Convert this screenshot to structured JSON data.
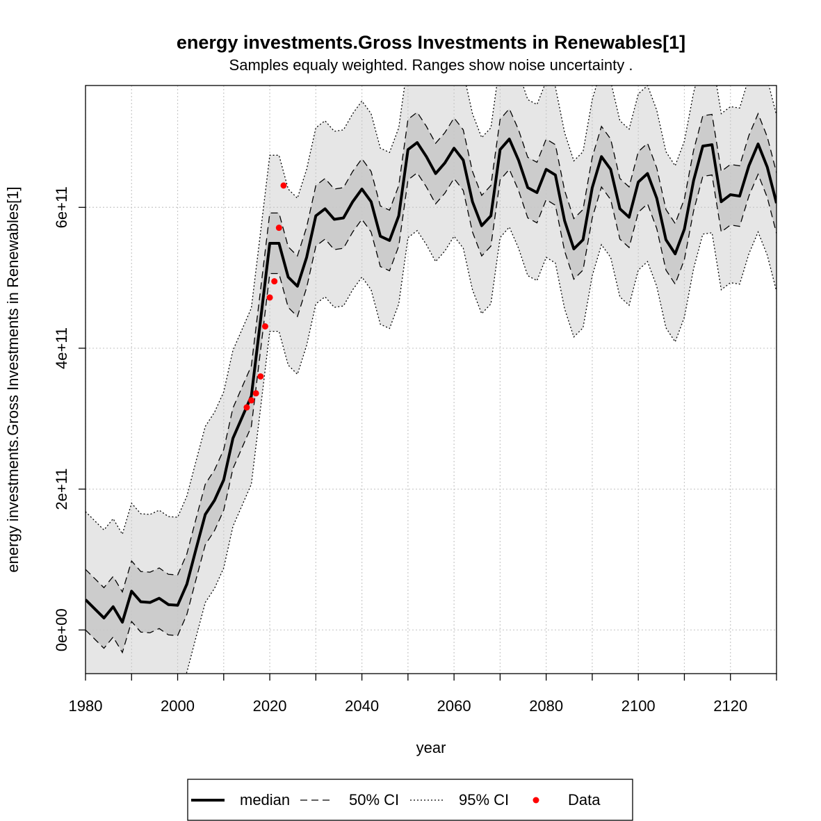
{
  "chart_data": {
    "type": "line",
    "title": "energy investments.Gross Investments in Renewables[1]",
    "subtitle": "Samples equaly weighted. Ranges show  noise uncertainty .",
    "x_label": "year",
    "y_label": "energy investments.Gross Investments in Renewables[1]",
    "xlim": [
      1980,
      2130
    ],
    "ylim": [
      -62000000000.0,
      773000000000.0
    ],
    "xticks": [
      1980,
      2000,
      2020,
      2040,
      2060,
      2080,
      2100,
      2120
    ],
    "x_minor_ticks": [
      1990,
      2010,
      2030,
      2050,
      2070,
      2090,
      2110,
      2130
    ],
    "yticks": [
      {
        "value": 0,
        "label": "0e+00"
      },
      {
        "value": 200000000000.0,
        "label": "2e+11"
      },
      {
        "value": 400000000000.0,
        "label": "4e+11"
      },
      {
        "value": 600000000000.0,
        "label": "6e+11"
      }
    ],
    "grid": true,
    "legend": "bottom",
    "x": [
      1980,
      1982,
      1984,
      1986,
      1988,
      1990,
      1992,
      1994,
      1996,
      1998,
      2000,
      2002,
      2004,
      2006,
      2008,
      2010,
      2012,
      2014,
      2016,
      2018,
      2020,
      2022,
      2024,
      2026,
      2028,
      2030,
      2032,
      2034,
      2036,
      2038,
      2040,
      2042,
      2044,
      2046,
      2048,
      2050,
      2052,
      2054,
      2056,
      2058,
      2060,
      2062,
      2064,
      2066,
      2068,
      2070,
      2072,
      2074,
      2076,
      2078,
      2080,
      2082,
      2084,
      2086,
      2088,
      2090,
      2092,
      2094,
      2096,
      2098,
      2100,
      2102,
      2104,
      2106,
      2108,
      2110,
      2112,
      2114,
      2116,
      2118,
      2120,
      2122,
      2124,
      2126,
      2128,
      2130
    ],
    "series": [
      {
        "name": "median",
        "color": "#000000",
        "values": [
          43000000000.0,
          30000000000.0,
          17000000000.0,
          33000000000.0,
          11000000000.0,
          55000000000.0,
          40000000000.0,
          39000000000.0,
          45000000000.0,
          36000000000.0,
          35000000000.0,
          65000000000.0,
          115000000000.0,
          164000000000.0,
          184000000000.0,
          213000000000.0,
          272000000000.0,
          302000000000.0,
          332000000000.0,
          440000000000.0,
          549000000000.0,
          549000000000.0,
          501000000000.0,
          488000000000.0,
          529000000000.0,
          588000000000.0,
          598000000000.0,
          583000000000.0,
          585000000000.0,
          608000000000.0,
          626000000000.0,
          608000000000.0,
          559000000000.0,
          553000000000.0,
          588000000000.0,
          682000000000.0,
          692000000000.0,
          672000000000.0,
          648000000000.0,
          663000000000.0,
          684000000000.0,
          667000000000.0,
          608000000000.0,
          574000000000.0,
          588000000000.0,
          682000000000.0,
          697000000000.0,
          667000000000.0,
          628000000000.0,
          621000000000.0,
          654000000000.0,
          646000000000.0,
          581000000000.0,
          541000000000.0,
          554000000000.0,
          628000000000.0,
          672000000000.0,
          654000000000.0,
          598000000000.0,
          586000000000.0,
          636000000000.0,
          648000000000.0,
          613000000000.0,
          554000000000.0,
          534000000000.0,
          569000000000.0,
          638000000000.0,
          687000000000.0,
          689000000000.0,
          608000000000.0,
          618000000000.0,
          616000000000.0,
          659000000000.0,
          690000000000.0,
          657000000000.0,
          606000000000.0
        ]
      },
      {
        "name": "50% CI",
        "color": "#cccccc",
        "upper": [
          86000000000.0,
          73000000000.0,
          60000000000.0,
          76000000000.0,
          54000000000.0,
          98000000000.0,
          83000000000.0,
          82000000000.0,
          88000000000.0,
          79000000000.0,
          78000000000.0,
          108000000000.0,
          158000000000.0,
          207000000000.0,
          227000000000.0,
          256000000000.0,
          315000000000.0,
          345000000000.0,
          375000000000.0,
          483000000000.0,
          592000000000.0,
          592000000000.0,
          544000000000.0,
          531000000000.0,
          572000000000.0,
          631000000000.0,
          641000000000.0,
          626000000000.0,
          628000000000.0,
          651000000000.0,
          669000000000.0,
          651000000000.0,
          602000000000.0,
          596000000000.0,
          631000000000.0,
          725000000000.0,
          735000000000.0,
          715000000000.0,
          691000000000.0,
          706000000000.0,
          727000000000.0,
          710000000000.0,
          651000000000.0,
          617000000000.0,
          631000000000.0,
          725000000000.0,
          740000000000.0,
          710000000000.0,
          671000000000.0,
          664000000000.0,
          697000000000.0,
          689000000000.0,
          624000000000.0,
          584000000000.0,
          597000000000.0,
          671000000000.0,
          715000000000.0,
          697000000000.0,
          641000000000.0,
          629000000000.0,
          679000000000.0,
          691000000000.0,
          656000000000.0,
          597000000000.0,
          577000000000.0,
          612000000000.0,
          681000000000.0,
          730000000000.0,
          732000000000.0,
          651000000000.0,
          661000000000.0,
          659000000000.0,
          702000000000.0,
          733000000000.0,
          700000000000.0,
          649000000000.0
        ],
        "lower": [
          0.0,
          -13000000000.0,
          -26000000000.0,
          -10000000000.0,
          -32000000000.0,
          12000000000.0,
          -3000000000.0,
          -4000000000.0,
          2000000000.0,
          -7000000000.0,
          -8000000000.0,
          22000000000.0,
          72000000000.0,
          121000000000.0,
          141000000000.0,
          170000000000.0,
          229000000000.0,
          259000000000.0,
          289000000000.0,
          397000000000.0,
          506000000000.0,
          506000000000.0,
          458000000000.0,
          445000000000.0,
          486000000000.0,
          545000000000.0,
          555000000000.0,
          540000000000.0,
          542000000000.0,
          565000000000.0,
          583000000000.0,
          565000000000.0,
          516000000000.0,
          510000000000.0,
          545000000000.0,
          639000000000.0,
          649000000000.0,
          629000000000.0,
          605000000000.0,
          620000000000.0,
          641000000000.0,
          624000000000.0,
          565000000000.0,
          531000000000.0,
          545000000000.0,
          639000000000.0,
          654000000000.0,
          624000000000.0,
          585000000000.0,
          578000000000.0,
          611000000000.0,
          603000000000.0,
          538000000000.0,
          498000000000.0,
          511000000000.0,
          585000000000.0,
          629000000000.0,
          611000000000.0,
          555000000000.0,
          543000000000.0,
          593000000000.0,
          605000000000.0,
          570000000000.0,
          511000000000.0,
          491000000000.0,
          526000000000.0,
          595000000000.0,
          644000000000.0,
          646000000000.0,
          565000000000.0,
          575000000000.0,
          573000000000.0,
          616000000000.0,
          647000000000.0,
          614000000000.0,
          563000000000.0
        ]
      },
      {
        "name": "95% CI",
        "color": "#e6e6e6",
        "upper": [
          168000000000.0,
          155000000000.0,
          142000000000.0,
          158000000000.0,
          136000000000.0,
          180000000000.0,
          165000000000.0,
          164000000000.0,
          170000000000.0,
          161000000000.0,
          160000000000.0,
          190000000000.0,
          240000000000.0,
          289000000000.0,
          309000000000.0,
          338000000000.0,
          397000000000.0,
          427000000000.0,
          457000000000.0,
          565000000000.0,
          674000000000.0,
          674000000000.0,
          626000000000.0,
          613000000000.0,
          654000000000.0,
          713000000000.0,
          723000000000.0,
          708000000000.0,
          710000000000.0,
          733000000000.0,
          751000000000.0,
          733000000000.0,
          684000000000.0,
          678000000000.0,
          713000000000.0,
          807000000000.0,
          817000000000.0,
          797000000000.0,
          773000000000.0,
          788000000000.0,
          809000000000.0,
          792000000000.0,
          733000000000.0,
          699000000000.0,
          713000000000.0,
          807000000000.0,
          822000000000.0,
          792000000000.0,
          753000000000.0,
          746000000000.0,
          779000000000.0,
          771000000000.0,
          706000000000.0,
          666000000000.0,
          679000000000.0,
          753000000000.0,
          797000000000.0,
          779000000000.0,
          723000000000.0,
          711000000000.0,
          761000000000.0,
          773000000000.0,
          738000000000.0,
          679000000000.0,
          659000000000.0,
          694000000000.0,
          763000000000.0,
          812000000000.0,
          814000000000.0,
          733000000000.0,
          743000000000.0,
          741000000000.0,
          784000000000.0,
          815000000000.0,
          782000000000.0,
          731000000000.0
        ],
        "lower": [
          -82000000000.0,
          -95000000000.0,
          -108000000000.0,
          -92000000000.0,
          -114000000000.0,
          -70000000000.0,
          -85000000000.0,
          -86000000000.0,
          -80000000000.0,
          -89000000000.0,
          -90000000000.0,
          -60000000000.0,
          -10000000000.0,
          39000000000.0,
          59000000000.0,
          88000000000.0,
          147000000000.0,
          177000000000.0,
          207000000000.0,
          315000000000.0,
          424000000000.0,
          424000000000.0,
          376000000000.0,
          363000000000.0,
          404000000000.0,
          463000000000.0,
          473000000000.0,
          458000000000.0,
          460000000000.0,
          483000000000.0,
          501000000000.0,
          483000000000.0,
          434000000000.0,
          428000000000.0,
          463000000000.0,
          557000000000.0,
          567000000000.0,
          547000000000.0,
          523000000000.0,
          538000000000.0,
          559000000000.0,
          542000000000.0,
          483000000000.0,
          449000000000.0,
          463000000000.0,
          557000000000.0,
          572000000000.0,
          542000000000.0,
          503000000000.0,
          496000000000.0,
          529000000000.0,
          521000000000.0,
          456000000000.0,
          416000000000.0,
          429000000000.0,
          503000000000.0,
          547000000000.0,
          529000000000.0,
          473000000000.0,
          461000000000.0,
          511000000000.0,
          523000000000.0,
          488000000000.0,
          429000000000.0,
          409000000000.0,
          444000000000.0,
          513000000000.0,
          562000000000.0,
          564000000000.0,
          483000000000.0,
          493000000000.0,
          491000000000.0,
          534000000000.0,
          565000000000.0,
          532000000000.0,
          481000000000.0
        ]
      },
      {
        "name": "Data",
        "color": "#ff0000",
        "x": [
          2015,
          2016,
          2017,
          2018,
          2019,
          2020,
          2021,
          2022,
          2023
        ],
        "values": [
          316000000000.0,
          326000000000.0,
          336000000000.0,
          360000000000.0,
          431000000000.0,
          472000000000.0,
          495000000000.0,
          571000000000.0,
          631000000000.0
        ]
      }
    ]
  }
}
